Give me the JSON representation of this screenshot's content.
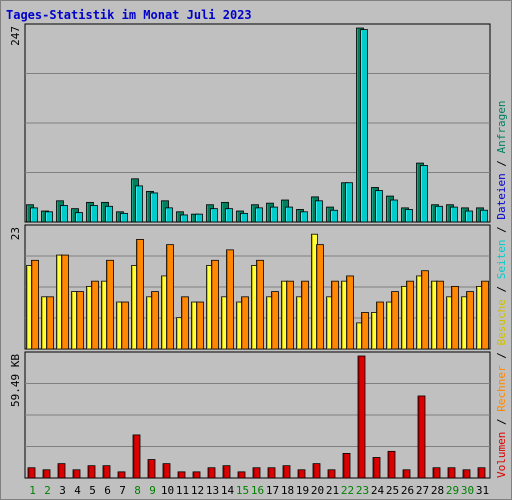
{
  "title": "Tages-Statistik im Monat Juli 2023",
  "colors": {
    "title": "#0000cc",
    "background": "#c0c0c0",
    "grid": "#808080",
    "border": "#000000",
    "anfragen": "#007f5f",
    "anfragen_light": "#20a080",
    "dateien": "#00cccc",
    "dateien_light": "#40e8f0",
    "besuche": "#ffff40",
    "besuche_dark": "#d0c000",
    "rechner": "#ff8800",
    "rechner_dark": "#d06000",
    "volumen": "#dd0000",
    "volumen_dark": "#880000",
    "weekend_label": "#008000",
    "weekday_label": "#000000",
    "slash": "#000000"
  },
  "chart_data": [
    {
      "type": "bar",
      "panel": "hits",
      "ymax_label": "247",
      "ylim": [
        0,
        247
      ],
      "series": [
        {
          "name": "Anfragen",
          "values": [
            22,
            14,
            27,
            17,
            25,
            25,
            13,
            55,
            39,
            27,
            13,
            10,
            22,
            25,
            14,
            22,
            24,
            28,
            16,
            32,
            19,
            50,
            247,
            44,
            33,
            18,
            75,
            22,
            22,
            18,
            18
          ]
        },
        {
          "name": "Dateien",
          "values": [
            18,
            13,
            21,
            12,
            21,
            20,
            11,
            46,
            37,
            18,
            9,
            10,
            17,
            17,
            11,
            18,
            19,
            19,
            13,
            27,
            15,
            50,
            245,
            40,
            28,
            16,
            72,
            20,
            19,
            14,
            15
          ]
        }
      ],
      "legend_right": [
        "Anfragen",
        "Dateien"
      ]
    },
    {
      "type": "bar",
      "panel": "visits",
      "ymax_label": "23",
      "ylim": [
        0,
        23
      ],
      "series": [
        {
          "name": "Seiten",
          "values": [
            15,
            10,
            14,
            10,
            12,
            14,
            10,
            15,
            10,
            14,
            6,
            8,
            15,
            13,
            9,
            13,
            10,
            12,
            10,
            23,
            10,
            13,
            5,
            7,
            8,
            12,
            14,
            13,
            10,
            10,
            12
          ]
        },
        {
          "name": "Besuche",
          "values": [
            16,
            10,
            18,
            11,
            12,
            13,
            9,
            16,
            10,
            14,
            6,
            9,
            16,
            10,
            9,
            16,
            10,
            13,
            10,
            22,
            10,
            13,
            5,
            7,
            9,
            12,
            14,
            13,
            10,
            10,
            12
          ]
        },
        {
          "name": "Rechner",
          "values": [
            17,
            10,
            18,
            11,
            13,
            17,
            9,
            21,
            11,
            20,
            10,
            9,
            17,
            19,
            10,
            17,
            11,
            13,
            13,
            20,
            13,
            14,
            7,
            9,
            11,
            13,
            15,
            13,
            12,
            11,
            13
          ]
        }
      ],
      "legend_right": [
        "Besuche",
        "Seiten"
      ]
    },
    {
      "type": "bar",
      "panel": "volume",
      "ymax_label": "59.49 KB",
      "ylim": [
        0,
        59.49
      ],
      "series": [
        {
          "name": "Volumen",
          "values": [
            5,
            4,
            7,
            4,
            6,
            6,
            3,
            21,
            9,
            7,
            3,
            3,
            5,
            6,
            3,
            5,
            5,
            6,
            4,
            7,
            4,
            12,
            59.49,
            10,
            13,
            4,
            40,
            5,
            5,
            4,
            5
          ]
        }
      ],
      "legend_right": [
        "Volumen",
        "Rechner"
      ]
    }
  ],
  "x_labels": [
    "1",
    "2",
    "3",
    "4",
    "5",
    "6",
    "7",
    "8",
    "9",
    "10",
    "11",
    "12",
    "13",
    "14",
    "15",
    "16",
    "17",
    "18",
    "19",
    "20",
    "21",
    "22",
    "23",
    "24",
    "25",
    "26",
    "27",
    "28",
    "29",
    "30",
    "31"
  ],
  "weekend_days": [
    "1",
    "2",
    "8",
    "9",
    "15",
    "16",
    "22",
    "23",
    "29",
    "30"
  ]
}
